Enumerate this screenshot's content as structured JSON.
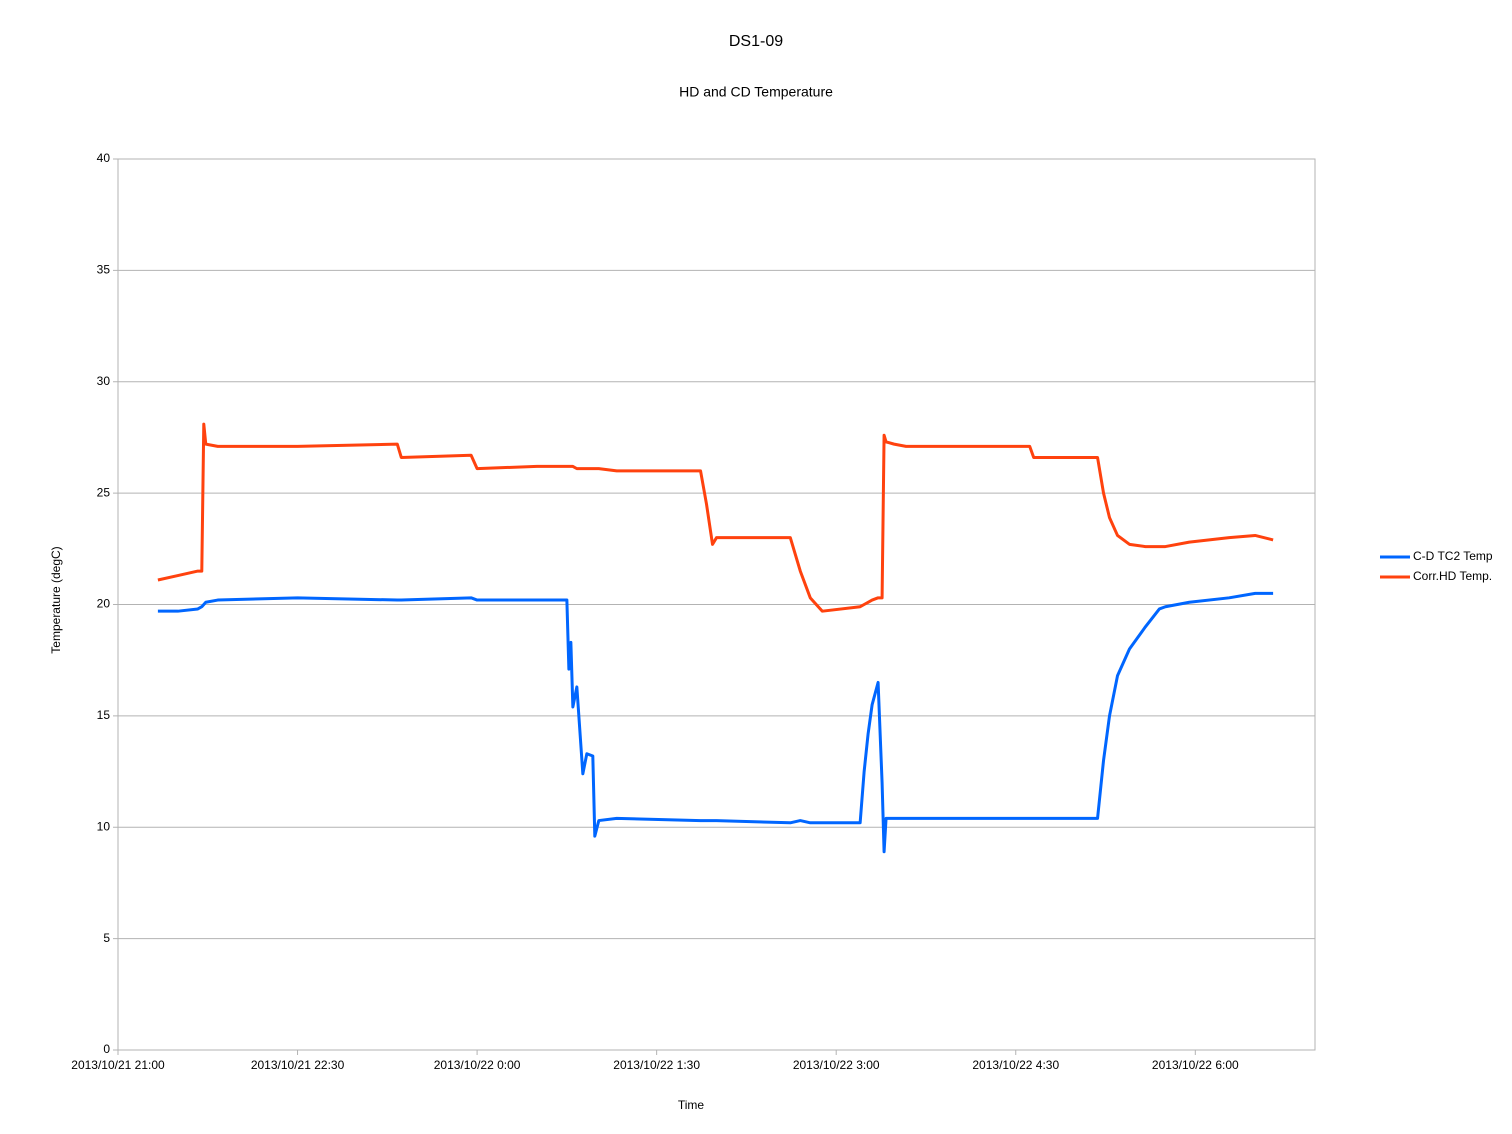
{
  "chart_data": {
    "type": "line",
    "title": "DS1-09",
    "subtitle": "HD and CD Temperature",
    "x_label": "Time",
    "y_label": "Temperature (degC)",
    "x": [
      "2013/10/21 21:20",
      "2013/10/21 21:30",
      "2013/10/21 21:40",
      "2013/10/21 21:42",
      "2013/10/21 21:43",
      "2013/10/21 21:44",
      "2013/10/21 21:50",
      "2013/10/21 22:30",
      "2013/10/21 23:20",
      "2013/10/21 23:22",
      "2013/10/21 23:57",
      "2013/10/22 0:00",
      "2013/10/22 0:30",
      "2013/10/22 0:45",
      "2013/10/22 0:46",
      "2013/10/22 0:47",
      "2013/10/22 0:48",
      "2013/10/22 0:50",
      "2013/10/22 0:53",
      "2013/10/22 0:55",
      "2013/10/22 0:58",
      "2013/10/22 0:59",
      "2013/10/22 1:01",
      "2013/10/22 1:10",
      "2013/10/22 1:52",
      "2013/10/22 1:55",
      "2013/10/22 1:58",
      "2013/10/22 2:00",
      "2013/10/22 2:37",
      "2013/10/22 2:42",
      "2013/10/22 2:47",
      "2013/10/22 2:53",
      "2013/10/22 3:12",
      "2013/10/22 3:14",
      "2013/10/22 3:16",
      "2013/10/22 3:18",
      "2013/10/22 3:21",
      "2013/10/22 3:23",
      "2013/10/22 3:24",
      "2013/10/22 3:25",
      "2013/10/22 3:29",
      "2013/10/22 3:35",
      "2013/10/22 4:37",
      "2013/10/22 4:39",
      "2013/10/22 5:11",
      "2013/10/22 5:14",
      "2013/10/22 5:17",
      "2013/10/22 5:21",
      "2013/10/22 5:27",
      "2013/10/22 5:35",
      "2013/10/22 5:42",
      "2013/10/22 5:45",
      "2013/10/22 5:57",
      "2013/10/22 6:17",
      "2013/10/22 6:30",
      "2013/10/22 6:39"
    ],
    "series": [
      {
        "name": "C-D TC2 Temp",
        "color": "#0066ff",
        "values": [
          19.7,
          19.7,
          19.8,
          19.9,
          20.0,
          20.1,
          20.2,
          20.3,
          20.2,
          20.2,
          20.3,
          20.2,
          20.2,
          20.2,
          17.1,
          18.3,
          15.4,
          16.3,
          12.4,
          13.3,
          13.2,
          9.6,
          10.3,
          10.4,
          10.3,
          10.3,
          10.3,
          10.3,
          10.2,
          10.3,
          10.2,
          10.2,
          10.2,
          12.5,
          14.2,
          15.5,
          16.5,
          12.0,
          8.9,
          10.4,
          10.4,
          10.4,
          10.4,
          10.4,
          10.4,
          13.0,
          15.0,
          16.8,
          18.0,
          19.0,
          19.8,
          19.9,
          20.1,
          20.3,
          20.5,
          20.5
        ]
      },
      {
        "name": "Corr.HD Temp.",
        "color": "#ff420e",
        "values": [
          21.1,
          21.3,
          21.5,
          21.5,
          28.1,
          27.2,
          27.1,
          27.1,
          27.2,
          26.6,
          26.7,
          26.1,
          26.2,
          26.2,
          26.2,
          26.2,
          26.2,
          26.1,
          26.1,
          26.1,
          26.1,
          26.1,
          26.1,
          26.0,
          26.0,
          24.5,
          22.7,
          23.0,
          23.0,
          21.5,
          20.3,
          19.7,
          19.9,
          20.0,
          20.1,
          20.2,
          20.3,
          20.3,
          27.6,
          27.3,
          27.2,
          27.1,
          27.1,
          26.6,
          26.6,
          25.0,
          23.9,
          23.1,
          22.7,
          22.6,
          22.6,
          22.6,
          22.8,
          23.0,
          23.1,
          22.9
        ]
      }
    ],
    "xlim": [
      "2013/10/21 21:00",
      "2013/10/22 7:00"
    ],
    "xticks": [
      "2013/10/21 21:00",
      "2013/10/21 22:30",
      "2013/10/22 0:00",
      "2013/10/22 1:30",
      "2013/10/22 3:00",
      "2013/10/22 4:30",
      "2013/10/22 6:00"
    ],
    "ylim": [
      0,
      40
    ],
    "yticks": [
      0,
      5,
      10,
      15,
      20,
      25,
      30,
      35,
      40
    ],
    "grid": true,
    "legend": "right"
  }
}
